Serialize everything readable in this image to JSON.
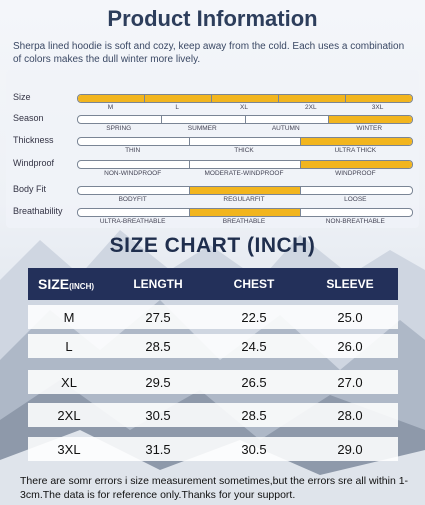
{
  "title": "Product Information",
  "description": "Sherpa lined hoodie is soft and cozy, keep away from the cold. Each uses a combination of colors makes the dull winter more lively.",
  "attributes": [
    {
      "label": "Size",
      "options": [
        "M",
        "L",
        "XL",
        "2XL",
        "3XL"
      ],
      "active": [
        0,
        1,
        2,
        3,
        4
      ]
    },
    {
      "label": "Season",
      "options": [
        "Spring",
        "Summer",
        "Autumn",
        "Winter"
      ],
      "active": [
        3
      ]
    },
    {
      "label": "Thickness",
      "options": [
        "Thin",
        "Thick",
        "Ultra thick"
      ],
      "active": [
        2
      ]
    },
    {
      "label": "Windproof",
      "options": [
        "Non-windproof",
        "Moderate-windproof",
        "Windproof"
      ],
      "active": [
        2
      ]
    },
    {
      "label": "Body Fit",
      "options": [
        "Bodyfit",
        "Regularfit",
        "Loose"
      ],
      "active": [
        1
      ]
    },
    {
      "label": "Breathability",
      "options": [
        "Ultra-breathable",
        "Breathable",
        "Non-breathable"
      ],
      "active": [
        1
      ]
    }
  ],
  "accent_color": "#f2b51e",
  "size_chart": {
    "title": "SIZE CHART (INCH)",
    "header": {
      "size": "SIZE",
      "size_unit": "(INCH)",
      "length": "LENGTH",
      "chest": "CHEST",
      "sleeve": "SLEEVE"
    },
    "rows": [
      {
        "size": "M",
        "length": "27.5",
        "chest": "22.5",
        "sleeve": "25.0"
      },
      {
        "size": "L",
        "length": "28.5",
        "chest": "24.5",
        "sleeve": "26.0"
      },
      {
        "size": "XL",
        "length": "29.5",
        "chest": "26.5",
        "sleeve": "27.0"
      },
      {
        "size": "2XL",
        "length": "30.5",
        "chest": "28.5",
        "sleeve": "28.0"
      },
      {
        "size": "3XL",
        "length": "31.5",
        "chest": "30.5",
        "sleeve": "29.0"
      }
    ]
  },
  "footnote": "There are somr errors i size measurement sometimes,but the errors sre all within 1-3cm.The data is for reference only.Thanks for your support."
}
